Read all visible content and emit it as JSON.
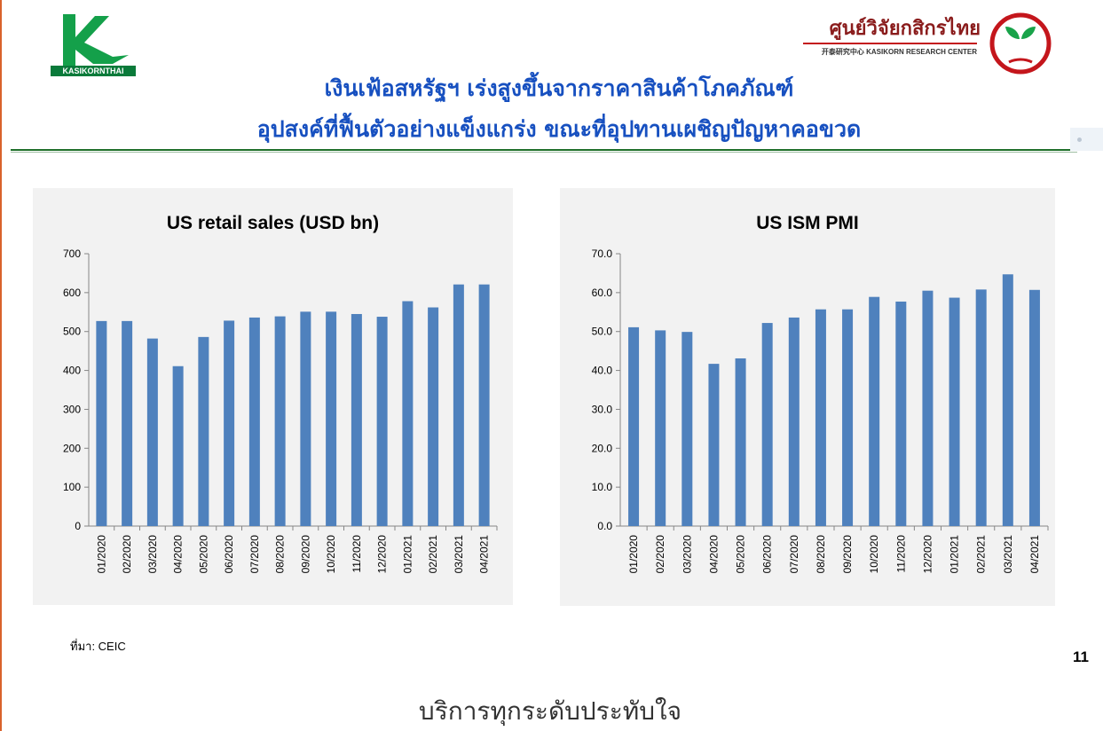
{
  "header": {
    "brand_left": "KASIKORNTHAI",
    "brand_right": "ศูนย์วิจัยกสิกรไทย",
    "brand_right_sub": "开泰研究中心 KASIKORN RESEARCH CENTER",
    "title_line1": "เงินเฟ้อสหรัฐฯ เร่งสูงขึ้นจากราคาสินค้าโภคภัณฑ์",
    "title_line2": "อุปสงค์ที่ฟื้นตัวอย่างแข็งแกร่ง ขณะที่อุปทานเผชิญปัญหาคอขวด"
  },
  "colors": {
    "headline": "#1750c0",
    "bar": "#4f81bd",
    "rule": "#1f6f2a",
    "logo_green": "#0a7a3a",
    "logo_red": "#c4161c"
  },
  "chart_data": [
    {
      "type": "bar",
      "title": "US retail sales (USD bn)",
      "categories": [
        "01/2020",
        "02/2020",
        "03/2020",
        "04/2020",
        "05/2020",
        "06/2020",
        "07/2020",
        "08/2020",
        "09/2020",
        "10/2020",
        "11/2020",
        "12/2020",
        "01/2021",
        "02/2021",
        "03/2021",
        "04/2021"
      ],
      "values": [
        527,
        527,
        482,
        411,
        486,
        528,
        536,
        539,
        551,
        551,
        545,
        538,
        578,
        562,
        621,
        621
      ],
      "ylim": [
        0,
        700
      ],
      "yticks": [
        "0",
        "100",
        "200",
        "300",
        "400",
        "500",
        "600",
        "700"
      ],
      "grid": false
    },
    {
      "type": "bar",
      "title": "US ISM PMI",
      "categories": [
        "01/2020",
        "02/2020",
        "03/2020",
        "04/2020",
        "05/2020",
        "06/2020",
        "07/2020",
        "08/2020",
        "09/2020",
        "10/2020",
        "11/2020",
        "12/2020",
        "01/2021",
        "02/2021",
        "03/2021",
        "04/2021"
      ],
      "values": [
        51.1,
        50.3,
        49.9,
        41.7,
        43.1,
        52.2,
        53.6,
        55.7,
        55.7,
        58.9,
        57.7,
        60.5,
        58.7,
        60.8,
        64.7,
        60.7
      ],
      "ylim": [
        0,
        70
      ],
      "yticks": [
        "0.0",
        "10.0",
        "20.0",
        "30.0",
        "40.0",
        "50.0",
        "60.0",
        "70.0"
      ],
      "grid": false
    }
  ],
  "source": "ที่มา: CEIC",
  "page_number": "11",
  "footer": "บริการทุกระดับประทับใจ"
}
